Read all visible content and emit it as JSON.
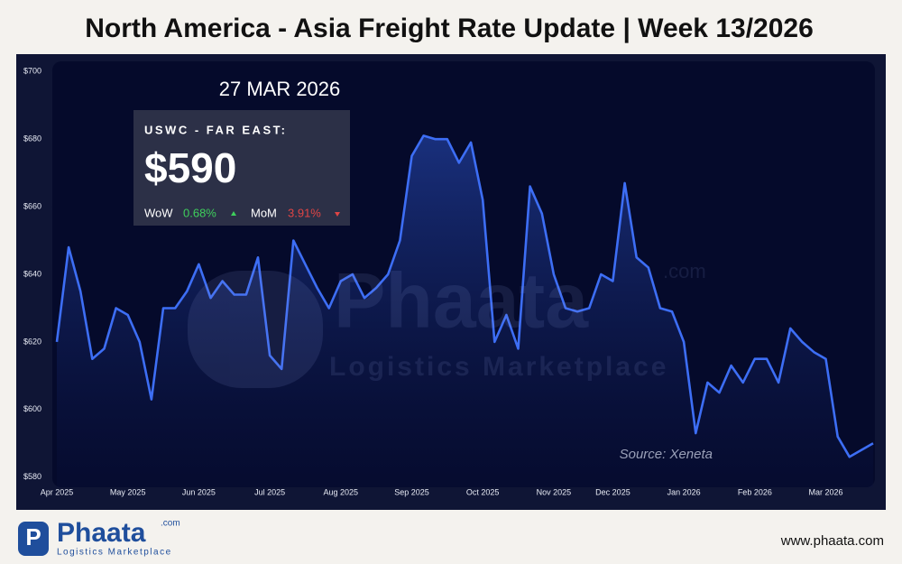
{
  "header": {
    "title": "North America - Asia Freight Rate Update | Week 13/2026"
  },
  "chart_data": {
    "type": "line",
    "categories": [
      "Apr 2025",
      null,
      null,
      null,
      null,
      null,
      "May 2025",
      null,
      null,
      null,
      null,
      null,
      "Jun 2025",
      null,
      null,
      null,
      null,
      null,
      "Jul 2025",
      null,
      null,
      null,
      null,
      null,
      "Aug 2025",
      null,
      null,
      null,
      null,
      null,
      "Sep 2025",
      null,
      null,
      null,
      null,
      null,
      "Oct 2025",
      null,
      null,
      null,
      null,
      null,
      "Nov 2025",
      null,
      null,
      null,
      null,
      "Dec 2025",
      null,
      null,
      null,
      null,
      null,
      "Jan 2026",
      null,
      null,
      null,
      null,
      null,
      "Feb 2026",
      null,
      null,
      null,
      null,
      null,
      "Mar 2026",
      null,
      null,
      null,
      null
    ],
    "series": [
      {
        "color": "#3d6ef5",
        "values": [
          620,
          648,
          635,
          615,
          618,
          630,
          628,
          620,
          603,
          630,
          630,
          635,
          643,
          633,
          638,
          634,
          634,
          645,
          616,
          612,
          650,
          643,
          636,
          630,
          638,
          640,
          633,
          636,
          640,
          650,
          675,
          681,
          680,
          680,
          673,
          679,
          662,
          620,
          628,
          618,
          666,
          658,
          640,
          630,
          629,
          630,
          640,
          638,
          667,
          645,
          642,
          630,
          629,
          620,
          593,
          608,
          605,
          613,
          608,
          615,
          615,
          608,
          624,
          620,
          617,
          615,
          592,
          586,
          588,
          590
        ]
      }
    ],
    "ylim": [
      577,
      703
    ],
    "yticks": [
      {
        "value": 580,
        "label": "$580"
      },
      {
        "value": 600,
        "label": "$600"
      },
      {
        "value": 620,
        "label": "$620"
      },
      {
        "value": 640,
        "label": "$640"
      },
      {
        "value": 660,
        "label": "$660"
      },
      {
        "value": 680,
        "label": "$680"
      },
      {
        "value": 700,
        "label": "$700"
      }
    ],
    "annotations": {
      "date": "27 MAR 2026",
      "route": "USWC - FAR EAST:",
      "price": "$590",
      "wow_label": "WoW",
      "wow": "0.68%",
      "mom_label": "MoM",
      "mom": "3.91%",
      "source": "Source: Xeneta"
    }
  },
  "footer": {
    "brand": "Phaata",
    "domain": ".com",
    "tagline": "Logistics Marketplace",
    "website": "www.phaata.com"
  }
}
